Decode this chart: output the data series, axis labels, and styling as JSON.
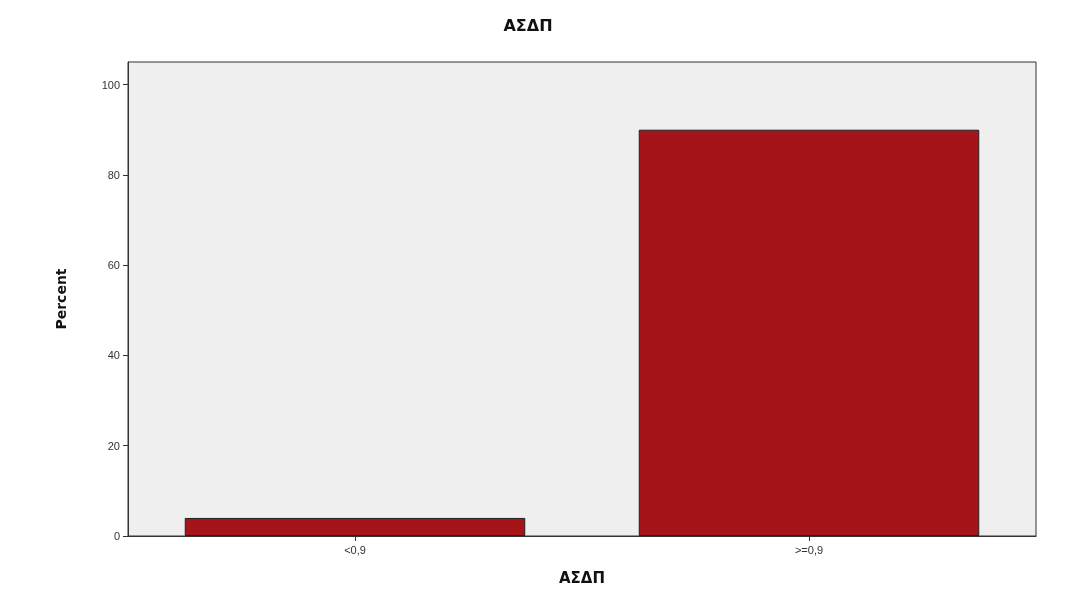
{
  "chart_data": {
    "type": "bar",
    "title": "ΑΣΔΠ",
    "xlabel": "ΑΣΔΠ",
    "ylabel": "Percent",
    "categories": [
      "<0,9",
      ">=0,9"
    ],
    "values": [
      4,
      90
    ],
    "color": "#a51419",
    "ylim": [
      0,
      105
    ],
    "yticks": [
      0,
      20,
      40,
      60,
      80,
      100
    ],
    "grid": false
  }
}
